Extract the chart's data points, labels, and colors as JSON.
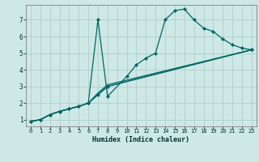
{
  "xlabel": "Humidex (Indice chaleur)",
  "background_color": "#cde8e5",
  "grid_color": "#aecfcc",
  "line_color": "#006666",
  "xlim": [
    -0.5,
    23.5
  ],
  "ylim": [
    0.6,
    7.9
  ],
  "xticks": [
    0,
    1,
    2,
    3,
    4,
    5,
    6,
    7,
    8,
    9,
    10,
    11,
    12,
    13,
    14,
    15,
    16,
    17,
    18,
    19,
    20,
    21,
    22,
    23
  ],
  "yticks": [
    1,
    2,
    3,
    4,
    5,
    6,
    7
  ],
  "line_A": {
    "x": [
      0,
      1,
      2,
      3,
      4,
      5,
      6,
      7,
      8,
      23
    ],
    "y": [
      0.9,
      1.0,
      1.3,
      1.5,
      1.65,
      1.8,
      2.0,
      2.5,
      3.0,
      5.2
    ],
    "markers": true
  },
  "line_B": {
    "x": [
      0,
      1,
      2,
      3,
      4,
      5,
      6,
      7,
      8,
      23
    ],
    "y": [
      0.9,
      1.0,
      1.3,
      1.5,
      1.65,
      1.8,
      2.0,
      2.5,
      3.0,
      5.2
    ],
    "markers": false
  },
  "line_C": {
    "x": [
      0,
      1,
      2,
      3,
      4,
      5,
      6,
      7,
      8,
      23
    ],
    "y": [
      0.9,
      1.0,
      1.3,
      1.5,
      1.65,
      1.8,
      2.0,
      2.6,
      3.1,
      5.2
    ],
    "markers": false
  },
  "line_D": {
    "x": [
      0,
      1,
      2,
      3,
      4,
      5,
      6,
      7,
      8,
      10,
      11,
      12,
      13,
      14,
      15,
      16,
      17,
      18,
      19,
      20,
      21,
      22,
      23
    ],
    "y": [
      0.9,
      1.0,
      1.3,
      1.5,
      1.65,
      1.8,
      2.0,
      7.0,
      2.4,
      3.6,
      4.3,
      4.7,
      5.0,
      7.0,
      7.55,
      7.65,
      7.0,
      6.5,
      6.3,
      5.85,
      5.5,
      5.3,
      5.2
    ],
    "markers": true
  }
}
